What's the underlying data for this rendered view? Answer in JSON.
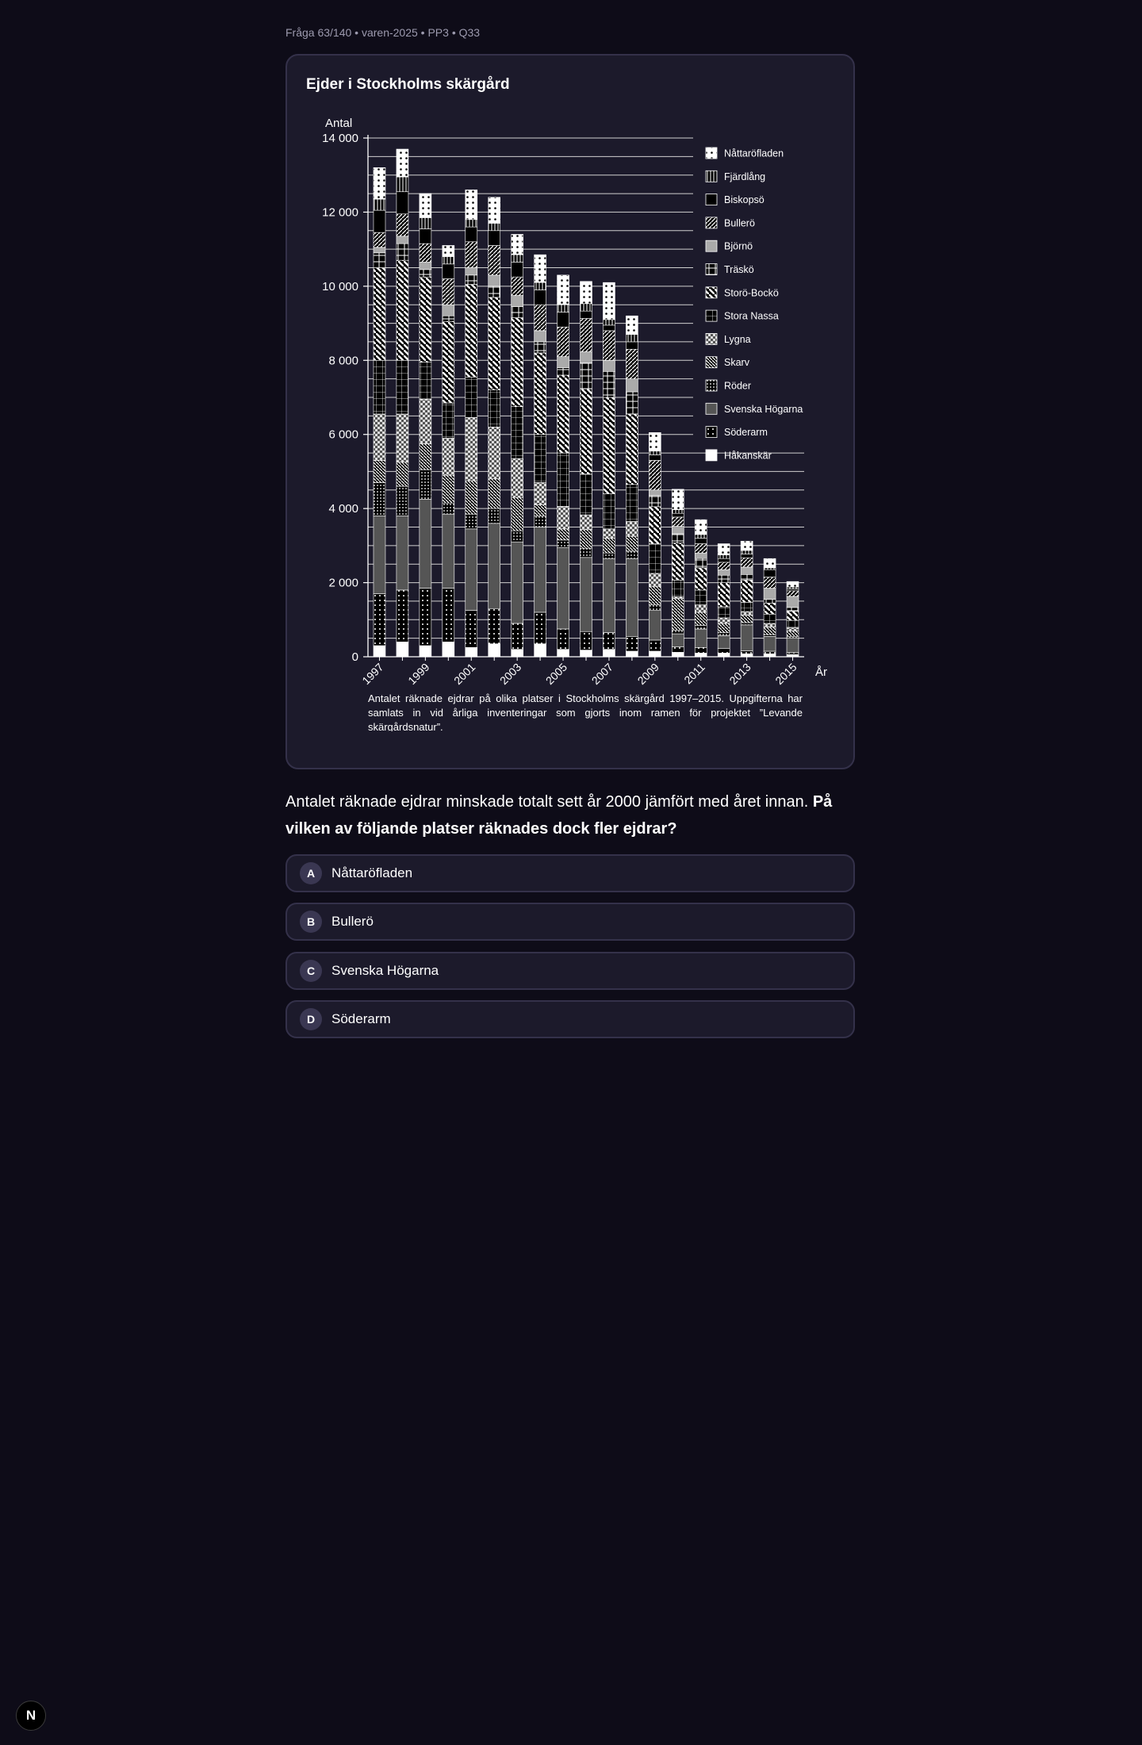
{
  "meta": "Fråga 63/140 • varen-2025 • PP3 • Q33",
  "question": {
    "text": "Antalet räknade ejdrar minskade totalt sett år 2000 jämfört med året innan.",
    "bold": "På vilken av följande platser räknades dock fler ejdrar?"
  },
  "options": [
    {
      "letter": "A",
      "text": "Nåttaröfladen"
    },
    {
      "letter": "B",
      "text": "Bullerö"
    },
    {
      "letter": "C",
      "text": "Svenska Högarna"
    },
    {
      "letter": "D",
      "text": "Söderarm"
    }
  ],
  "badge": "N",
  "chart_data": {
    "type": "bar",
    "stacked": true,
    "title": "Ejder i Stockholms skärgård",
    "ylabel": "Antal",
    "xlabel": "År",
    "ylim": [
      0,
      14000
    ],
    "yticks": [
      0,
      2000,
      4000,
      6000,
      8000,
      10000,
      12000,
      14000
    ],
    "ytick_labels": [
      "0",
      "2 000",
      "4 000",
      "6 000",
      "8 000",
      "10 000",
      "12 000",
      "14 000"
    ],
    "xtick_labels": [
      "1997",
      "1999",
      "2001",
      "2003",
      "2005",
      "2007",
      "2009",
      "2011",
      "2013",
      "2015"
    ],
    "categories": [
      "1997",
      "1998",
      "1999",
      "2000",
      "2001",
      "2002",
      "2003",
      "2004",
      "2005",
      "2006",
      "2007",
      "2008",
      "2009",
      "2010",
      "2011",
      "2012",
      "2013",
      "2014",
      "2015"
    ],
    "caption": "Antalet räknade ejdrar på olika platser i Stockholms skärgård 1997–2015. Uppgifterna har samlats in vid årliga inventeringar som gjorts inom ramen för projektet ”Levande skärgårdsnatur”.",
    "legend_position": "right",
    "series": [
      {
        "name": "Håkanskär",
        "pattern": "solid-white",
        "values": [
          300,
          400,
          300,
          400,
          250,
          350,
          200,
          350,
          200,
          180,
          200,
          150,
          150,
          120,
          100,
          100,
          80,
          80,
          60
        ]
      },
      {
        "name": "Söderarm",
        "pattern": "dots",
        "values": [
          1400,
          1400,
          1550,
          1450,
          1000,
          950,
          700,
          850,
          550,
          500,
          450,
          400,
          300,
          150,
          150,
          120,
          80,
          70,
          50
        ]
      },
      {
        "name": "Svenska Högarna",
        "pattern": "dark-gray",
        "values": [
          2100,
          2000,
          2400,
          2000,
          2200,
          2300,
          2200,
          2300,
          2200,
          2000,
          2000,
          2100,
          800,
          350,
          500,
          350,
          700,
          400,
          400
        ]
      },
      {
        "name": "Röder",
        "pattern": "small-grid",
        "values": [
          900,
          800,
          800,
          300,
          400,
          400,
          300,
          300,
          200,
          250,
          150,
          200,
          150,
          100,
          100,
          80,
          60,
          50,
          40
        ]
      },
      {
        "name": "Skarv",
        "pattern": "diag-dense",
        "values": [
          600,
          650,
          700,
          750,
          900,
          800,
          900,
          300,
          300,
          500,
          400,
          400,
          500,
          850,
          350,
          250,
          200,
          200,
          150
        ]
      },
      {
        "name": "Lygna",
        "pattern": "checker",
        "values": [
          1250,
          1300,
          1200,
          1000,
          1700,
          1400,
          1050,
          600,
          600,
          400,
          250,
          400,
          350,
          50,
          200,
          150,
          100,
          100,
          80
        ]
      },
      {
        "name": "Stora Nassa",
        "pattern": "grid",
        "values": [
          1450,
          1450,
          1000,
          950,
          1100,
          1000,
          1400,
          1300,
          1450,
          1100,
          950,
          1000,
          800,
          450,
          400,
          300,
          250,
          250,
          200
        ]
      },
      {
        "name": "Storö-Bockö",
        "pattern": "diag-back",
        "values": [
          2500,
          2700,
          2300,
          2200,
          2500,
          2500,
          2400,
          2200,
          2100,
          2300,
          2600,
          1900,
          1000,
          1000,
          600,
          650,
          600,
          300,
          250
        ]
      },
      {
        "name": "Träskö",
        "pattern": "cross",
        "values": [
          400,
          450,
          200,
          150,
          250,
          300,
          300,
          300,
          200,
          700,
          700,
          600,
          300,
          250,
          250,
          200,
          150,
          100,
          100
        ]
      },
      {
        "name": "Björnö",
        "pattern": "light-gray",
        "values": [
          150,
          200,
          200,
          300,
          200,
          300,
          300,
          300,
          300,
          300,
          300,
          350,
          150,
          200,
          150,
          150,
          200,
          300,
          300
        ]
      },
      {
        "name": "Bullerö",
        "pattern": "diag-fwd",
        "values": [
          400,
          600,
          500,
          700,
          700,
          800,
          500,
          700,
          800,
          900,
          800,
          800,
          800,
          250,
          250,
          200,
          250,
          300,
          150
        ]
      },
      {
        "name": "Biskopsö",
        "pattern": "white-outline",
        "values": [
          600,
          600,
          400,
          400,
          400,
          400,
          400,
          400,
          400,
          200,
          150,
          200,
          150,
          100,
          150,
          100,
          100,
          200,
          50
        ]
      },
      {
        "name": "Fjärdlång",
        "pattern": "vertical",
        "values": [
          300,
          400,
          300,
          200,
          200,
          200,
          200,
          200,
          200,
          200,
          150,
          200,
          100,
          100,
          100,
          100,
          100,
          50,
          50
        ]
      },
      {
        "name": "Nåttaröfladen",
        "pattern": "white-dots",
        "values": [
          850,
          750,
          650,
          300,
          800,
          700,
          550,
          750,
          800,
          600,
          1000,
          500,
          500,
          550,
          400,
          300,
          250,
          250,
          150
        ]
      }
    ]
  }
}
